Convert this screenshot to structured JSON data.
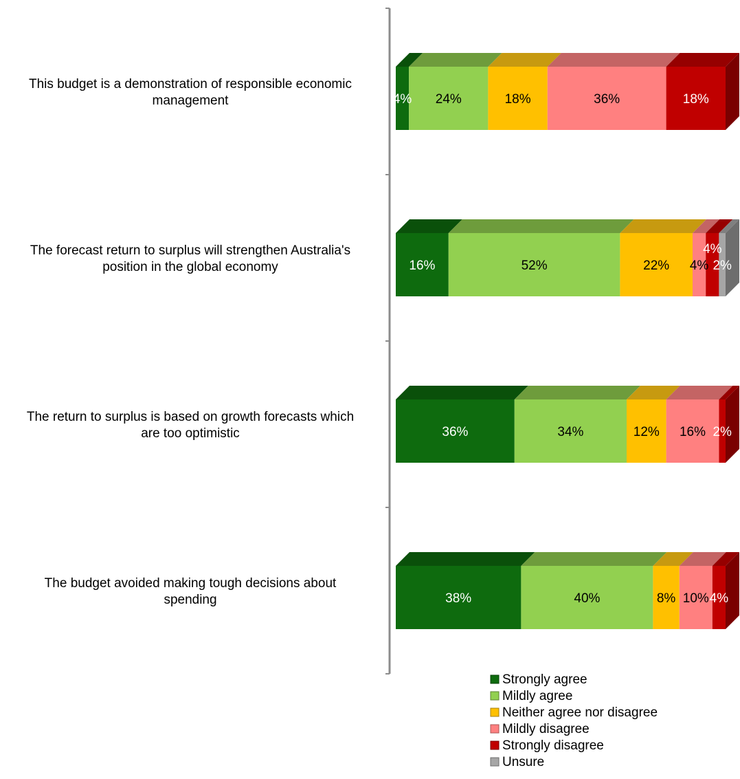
{
  "chart_data": {
    "type": "bar",
    "orientation": "horizontal",
    "stacked": "percent",
    "categories": [
      "This budget is a demonstration of responsible economic management",
      "The forecast return to surplus will strengthen Australia's position in the global economy",
      "The return to surplus is based on growth forecasts which are too optimistic",
      "The budget avoided making tough decisions about spending"
    ],
    "category_lines": [
      [
        "This budget is a demonstration of responsible economic",
        "management"
      ],
      [
        "The forecast return to surplus will strengthen Australia's",
        "position in the global economy"
      ],
      [
        "The return to surplus is based on growth forecasts which",
        "are too optimistic"
      ],
      [
        "The budget avoided making tough decisions about",
        "spending"
      ]
    ],
    "series": [
      {
        "name": "Strongly agree",
        "values": [
          4,
          16,
          36,
          38
        ],
        "labels": [
          "4%",
          "16%",
          "36%",
          "38%"
        ],
        "color": "#0e6b0e",
        "top": "#0a500a",
        "side": "#084008",
        "label_color": "#ffffff"
      },
      {
        "name": "Mildly agree",
        "values": [
          24,
          52,
          34,
          40
        ],
        "labels": [
          "24%",
          "52%",
          "34%",
          "40%"
        ],
        "color": "#92d050",
        "top": "#6e9c3c",
        "side": "#5c8232",
        "label_color": "#000000"
      },
      {
        "name": "Neither agree nor disagree",
        "values": [
          18,
          22,
          12,
          8
        ],
        "labels": [
          "18%",
          "22%",
          "12%",
          "8%"
        ],
        "color": "#ffc000",
        "top": "#c79a10",
        "side": "#a68010",
        "label_color": "#000000"
      },
      {
        "name": "Mildly disagree",
        "values": [
          36,
          4,
          16,
          10
        ],
        "labels": [
          "36%",
          "4%",
          "16%",
          "10%"
        ],
        "color": "#ff8080",
        "top": "#c46464",
        "side": "#a85454",
        "label_color": "#000000"
      },
      {
        "name": "Strongly disagree",
        "values": [
          18,
          4,
          2,
          4
        ],
        "labels": [
          "18%",
          "4%",
          "2%",
          "4%"
        ],
        "color": "#c00000",
        "top": "#960000",
        "side": "#7a0000",
        "label_color": "#ffffff"
      },
      {
        "name": "Unsure",
        "values": [
          0,
          2,
          0,
          0
        ],
        "labels": [
          "",
          "2%",
          "",
          ""
        ],
        "color": "#a6a6a6",
        "top": "#808080",
        "side": "#6e6e6e",
        "label_color": "#ffffff"
      }
    ],
    "xlim": [
      0,
      100
    ],
    "legend": "bottom",
    "grid": false,
    "title": "",
    "xlabel": "",
    "ylabel": ""
  }
}
